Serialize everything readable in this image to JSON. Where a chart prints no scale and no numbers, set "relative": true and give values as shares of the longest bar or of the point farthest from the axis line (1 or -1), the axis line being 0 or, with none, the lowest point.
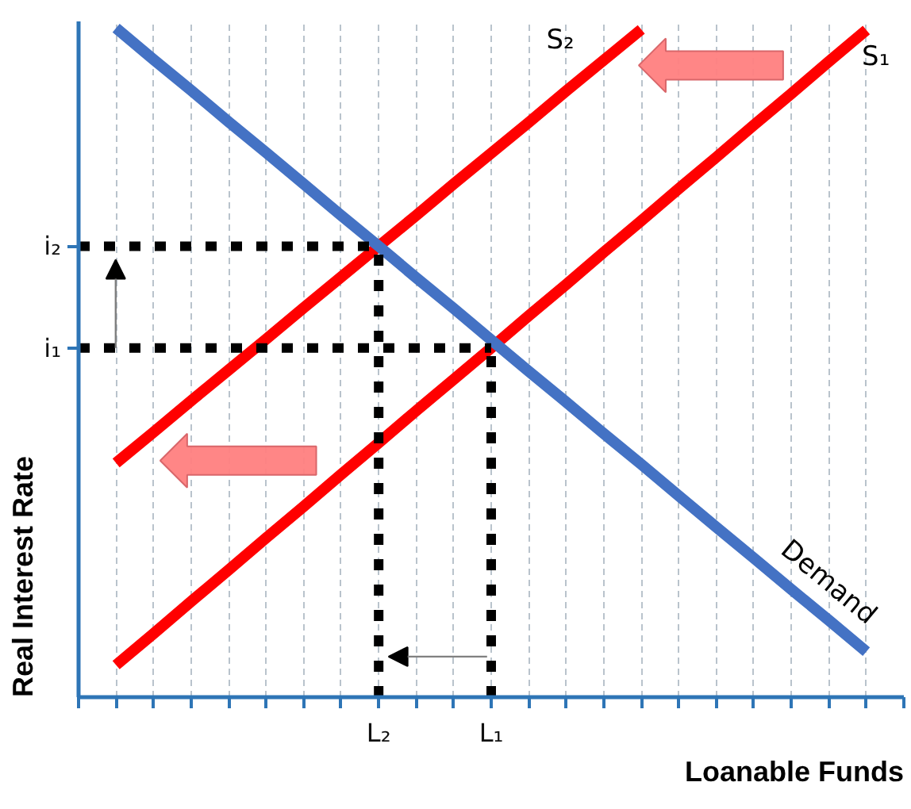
{
  "chart_data": {
    "type": "line",
    "xlabel": "Loanable Funds",
    "ylabel": "Real Interest Rate",
    "relative": true,
    "categories": [
      null,
      null,
      null,
      null,
      null,
      null,
      null,
      null,
      "L₂",
      null,
      null,
      "L₁",
      null,
      null,
      null,
      null,
      null,
      null,
      null,
      null,
      null,
      null,
      null
    ],
    "annotations": [
      "i₂",
      "i₁"
    ],
    "grid": "x",
    "series": [
      {
        "name": "S₂",
        "color": "#ff0000",
        "values": [
          null,
          0.35,
          0.396,
          0.443,
          0.489,
          0.535,
          0.582,
          0.628,
          0.674,
          0.72,
          0.767,
          0.813,
          0.859,
          0.906,
          0.952,
          0.998,
          null,
          null,
          null,
          null,
          null,
          null,
          null
        ]
      },
      {
        "name": "S₁",
        "color": "#ff0000",
        "values": [
          null,
          0.048,
          0.095,
          0.143,
          0.19,
          0.238,
          0.285,
          0.333,
          0.38,
          0.428,
          0.475,
          0.522,
          0.57,
          0.617,
          0.665,
          0.712,
          0.76,
          0.807,
          0.855,
          0.902,
          0.95,
          0.997,
          null
        ]
      },
      {
        "name": "Demand",
        "color": "#4472c4",
        "values": [
          null,
          1.0,
          0.953,
          0.907,
          0.86,
          0.814,
          0.767,
          0.72,
          0.674,
          0.627,
          0.581,
          0.534,
          0.487,
          0.441,
          0.394,
          0.348,
          0.301,
          0.254,
          0.208,
          0.161,
          0.115,
          0.068,
          null
        ]
      },
      {
        "color": "#000000",
        "line_style": "dotted",
        "values": [
          0.674,
          0.674,
          0.674,
          0.674,
          0.674,
          0.674,
          0.674,
          0.674,
          0.674,
          null,
          null,
          null,
          null,
          null,
          null,
          null,
          null,
          null,
          null,
          null,
          null,
          null,
          null
        ]
      },
      {
        "color": "#000000",
        "line_style": "dotted",
        "x": [
          "L₂",
          "L₂"
        ],
        "values": [
          0,
          0.674
        ]
      },
      {
        "color": "#000000",
        "line_style": "dotted",
        "values": [
          0.522,
          0.522,
          0.522,
          0.522,
          0.522,
          0.522,
          0.522,
          0.522,
          0.522,
          0.522,
          0.522,
          0.522,
          null,
          null,
          null,
          null,
          null,
          null,
          null,
          null,
          null,
          null,
          null
        ]
      },
      {
        "color": "#000000",
        "line_style": "dotted",
        "x": [
          "L₁",
          "L₁"
        ],
        "values": [
          0,
          0.522
        ]
      }
    ]
  }
}
